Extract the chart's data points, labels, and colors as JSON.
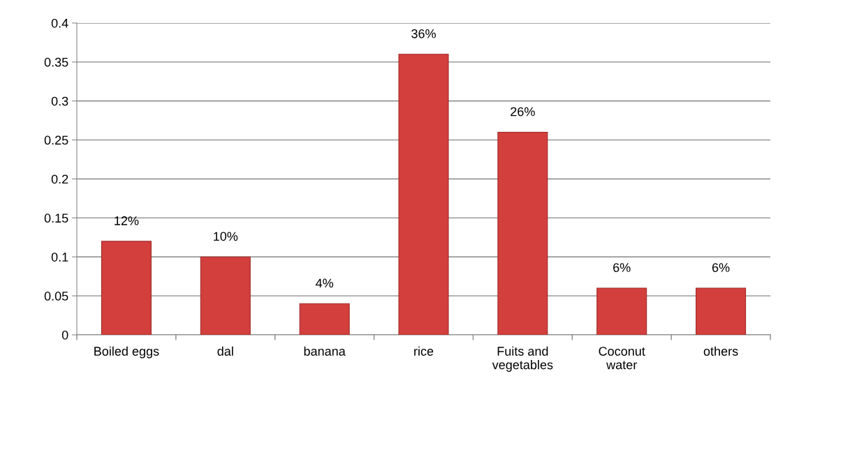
{
  "chart_data": {
    "type": "bar",
    "categories": [
      "Boiled eggs",
      "dal",
      "banana",
      "rice",
      "Fuits and\nvegetables",
      "Coconut\nwater",
      "others"
    ],
    "values": [
      0.12,
      0.1,
      0.04,
      0.36,
      0.26,
      0.06,
      0.06
    ],
    "value_labels": [
      "12%",
      "10%",
      "4%",
      "36%",
      "26%",
      "6%",
      "6%"
    ],
    "color": "#d23f3c",
    "ylim": [
      0,
      0.4
    ],
    "yticks": [
      0,
      0.05,
      0.1,
      0.15,
      0.2,
      0.25,
      0.3,
      0.35,
      0.4
    ],
    "grid": "y"
  }
}
